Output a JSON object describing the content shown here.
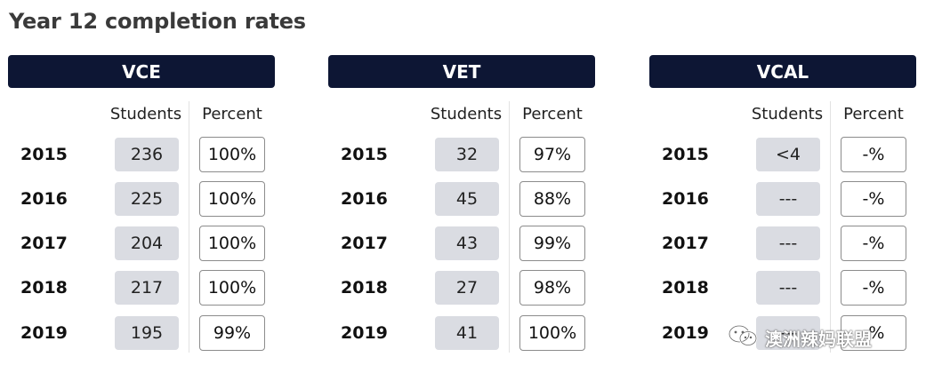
{
  "title": "Year 12 completion rates",
  "column_headers": {
    "students": "Students",
    "percent": "Percent"
  },
  "panels": [
    {
      "name": "VCE",
      "rows": [
        {
          "year": "2015",
          "students": "236",
          "percent": "100%"
        },
        {
          "year": "2016",
          "students": "225",
          "percent": "100%"
        },
        {
          "year": "2017",
          "students": "204",
          "percent": "100%"
        },
        {
          "year": "2018",
          "students": "217",
          "percent": "100%"
        },
        {
          "year": "2019",
          "students": "195",
          "percent": "99%"
        }
      ]
    },
    {
      "name": "VET",
      "rows": [
        {
          "year": "2015",
          "students": "32",
          "percent": "97%"
        },
        {
          "year": "2016",
          "students": "45",
          "percent": "88%"
        },
        {
          "year": "2017",
          "students": "43",
          "percent": "99%"
        },
        {
          "year": "2018",
          "students": "27",
          "percent": "98%"
        },
        {
          "year": "2019",
          "students": "41",
          "percent": "100%"
        }
      ]
    },
    {
      "name": "VCAL",
      "rows": [
        {
          "year": "2015",
          "students": "<4",
          "percent": "-%"
        },
        {
          "year": "2016",
          "students": "---",
          "percent": "-%"
        },
        {
          "year": "2017",
          "students": "---",
          "percent": "-%"
        },
        {
          "year": "2018",
          "students": "---",
          "percent": "-%"
        },
        {
          "year": "2019",
          "students": "---",
          "percent": "-%"
        }
      ]
    }
  ],
  "watermark": {
    "text": "澳洲辣妈联盟",
    "icon": "wechat-icon"
  },
  "colors": {
    "header_bg": "#0d1634",
    "students_cell_bg": "#dadce2",
    "percent_cell_border": "#8c8c8c"
  }
}
